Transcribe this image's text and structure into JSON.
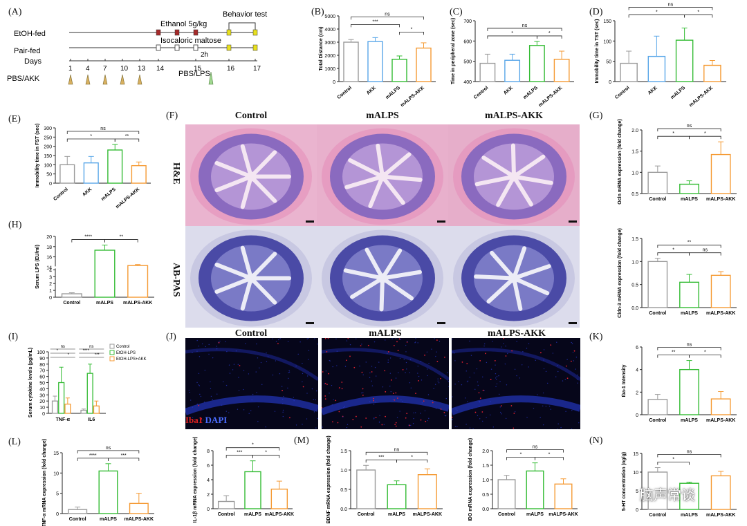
{
  "panel_labels": {
    "A": "(A)",
    "B": "(B)",
    "C": "(C)",
    "D": "(D)",
    "E": "(E)",
    "F": "(F)",
    "G": "(G)",
    "H": "(H)",
    "I": "(I)",
    "J": "(J)",
    "K": "(K)",
    "L": "(L)",
    "M": "(M)",
    "N": "(N)"
  },
  "timeline": {
    "row1_label": "EtOH-fed",
    "row2_label": "Pair-fed",
    "days_label": "Days",
    "ethanol_label": "Ethanol 5g/kg",
    "maltose_label": "Isocaloric maltose",
    "behavior_label": "Behavior test",
    "hours_label": "2h",
    "days": [
      "1",
      "4",
      "7",
      "10",
      "13",
      "14",
      "15",
      "16",
      "17"
    ],
    "pbs_akk_label": "PBS/AKK",
    "pbs_lps_label": "PBS/LPS"
  },
  "histology": {
    "col_titles": [
      "Control",
      "mALPS",
      "mALPS-AKK"
    ],
    "row_labels": [
      "H&E",
      "AB-PAS"
    ]
  },
  "fluorescence": {
    "col_titles": [
      "Control",
      "mALPS",
      "mALPS-AKK"
    ],
    "stain_iba": "Iba1",
    "stain_dapi": "DAPI"
  },
  "watermark": "脑声常谈",
  "chart_data": [
    {
      "id": "B",
      "type": "bar",
      "categories": [
        "Control",
        "AKK",
        "mALPS",
        "mALPS-AKK"
      ],
      "values": [
        3000,
        3050,
        1700,
        2550
      ],
      "errors": [
        200,
        300,
        250,
        400
      ],
      "colors": [
        "#9a9a9a",
        "#58a6e8",
        "#33bb33",
        "#f59a33"
      ],
      "ylabel": "Total Distance (cm)",
      "ylim": [
        0,
        5000
      ],
      "yticks": [
        "0",
        "1000",
        "2000",
        "3000",
        "4000",
        "5000"
      ],
      "sig": [
        {
          "a": 0,
          "b": 2,
          "text": "***",
          "level": 1
        },
        {
          "a": 2,
          "b": 3,
          "text": "*",
          "level": 0
        },
        {
          "a": 0,
          "b": 3,
          "text": "ns",
          "level": 2
        }
      ]
    },
    {
      "id": "C",
      "type": "bar",
      "categories": [
        "Control",
        "AKK",
        "mALPS",
        "mALPS-AKK"
      ],
      "values": [
        490,
        505,
        578,
        510
      ],
      "errors": [
        45,
        30,
        20,
        40
      ],
      "colors": [
        "#9a9a9a",
        "#58a6e8",
        "#33bb33",
        "#f59a33"
      ],
      "ylabel": "Time in peripheral zone (sec)",
      "ylim": [
        400,
        700
      ],
      "yticks": [
        "400",
        "500",
        "600",
        "700"
      ],
      "sig": [
        {
          "a": 0,
          "b": 2,
          "text": "*",
          "level": 0
        },
        {
          "a": 2,
          "b": 3,
          "text": "*",
          "level": 0
        },
        {
          "a": 0,
          "b": 3,
          "text": "ns",
          "level": 1
        }
      ]
    },
    {
      "id": "D",
      "type": "bar",
      "categories": [
        "Control",
        "AKK",
        "mALPS",
        "mALPS-AKK"
      ],
      "values": [
        45,
        62,
        102,
        40
      ],
      "errors": [
        30,
        50,
        30,
        12
      ],
      "colors": [
        "#9a9a9a",
        "#58a6e8",
        "#33bb33",
        "#f59a33"
      ],
      "ylabel": "Immobility time in TST (sec)",
      "ylim": [
        0,
        150
      ],
      "yticks": [
        "0",
        "50",
        "100",
        "150"
      ],
      "sig": [
        {
          "a": 0,
          "b": 2,
          "text": "*",
          "level": 1
        },
        {
          "a": 2,
          "b": 3,
          "text": "*",
          "level": 1
        },
        {
          "a": 0,
          "b": 3,
          "text": "ns",
          "level": 2
        }
      ]
    },
    {
      "id": "E",
      "type": "bar",
      "categories": [
        "Control",
        "AKK",
        "mALPS",
        "mALPS-AKK"
      ],
      "values": [
        100,
        110,
        180,
        95
      ],
      "errors": [
        45,
        35,
        30,
        20
      ],
      "colors": [
        "#9a9a9a",
        "#58a6e8",
        "#33bb33",
        "#f59a33"
      ],
      "ylabel": "Immobility time in FST (sec)",
      "ylim": [
        0,
        300
      ],
      "yticks": [
        "0",
        "50",
        "100",
        "150",
        "200",
        "250",
        "300"
      ],
      "sig": [
        {
          "a": 0,
          "b": 2,
          "text": "*",
          "level": 0
        },
        {
          "a": 2,
          "b": 3,
          "text": "**",
          "level": 0
        },
        {
          "a": 0,
          "b": 3,
          "text": "ns",
          "level": 1
        }
      ]
    },
    {
      "id": "G1",
      "type": "bar",
      "categories": [
        "Control",
        "mALPS",
        "mALPS-AKK"
      ],
      "values": [
        1.0,
        0.72,
        1.42
      ],
      "errors": [
        0.15,
        0.08,
        0.3
      ],
      "colors": [
        "#9a9a9a",
        "#33bb33",
        "#f59a33"
      ],
      "ylabel": "Ocln mRNA expression (fold change)",
      "ylim": [
        0.5,
        2.0
      ],
      "yticks": [
        "0.5",
        "1.0",
        "1.5",
        "2.0"
      ],
      "sig": [
        {
          "a": 0,
          "b": 1,
          "text": "*",
          "level": 0
        },
        {
          "a": 1,
          "b": 2,
          "text": "*",
          "level": 0
        },
        {
          "a": 0,
          "b": 2,
          "text": "ns",
          "level": 1
        }
      ]
    },
    {
      "id": "G2",
      "type": "bar",
      "categories": [
        "Control",
        "mALPS",
        "mALPS-AKK"
      ],
      "values": [
        1.0,
        0.55,
        0.7
      ],
      "errors": [
        0.07,
        0.17,
        0.08
      ],
      "colors": [
        "#9a9a9a",
        "#33bb33",
        "#f59a33"
      ],
      "ylabel": "Cldn-3 mRNA expression (fold change)",
      "ylim": [
        0.0,
        1.5
      ],
      "yticks": [
        "0.0",
        "0.5",
        "1.0",
        "1.5"
      ],
      "sig": [
        {
          "a": 0,
          "b": 1,
          "text": "*",
          "level": 0
        },
        {
          "a": 1,
          "b": 2,
          "text": "ns",
          "level": 0
        },
        {
          "a": 0,
          "b": 2,
          "text": "**",
          "level": 1
        }
      ]
    },
    {
      "id": "H",
      "type": "bar",
      "categories": [
        "Control",
        "mALPS",
        "mALPS-AKK"
      ],
      "values": [
        0.5,
        17.3,
        14.3
      ],
      "errors": [
        0.15,
        1.0,
        0.2
      ],
      "colors": [
        "#9a9a9a",
        "#33bb33",
        "#f59a33"
      ],
      "ylabel": "Serum LPS (EU/ml)",
      "ylim": [
        0,
        20
      ],
      "yticks": [
        "0",
        "1",
        "2",
        "3",
        "4",
        "14",
        "16",
        "18",
        "20"
      ],
      "axis_break": true,
      "sig": [
        {
          "a": 0,
          "b": 1,
          "text": "****",
          "level": 0
        },
        {
          "a": 1,
          "b": 2,
          "text": "**",
          "level": 0
        }
      ]
    },
    {
      "id": "I",
      "type": "grouped_bar",
      "categories": [
        "TNF-α",
        "IL6"
      ],
      "series": [
        {
          "name": "Control",
          "values": [
            20,
            5
          ],
          "errors": [
            8,
            2
          ],
          "color": "#9a9a9a"
        },
        {
          "name": "EtOH-LPS",
          "values": [
            50,
            65
          ],
          "errors": [
            25,
            15
          ],
          "color": "#33bb33"
        },
        {
          "name": "EtOH-LPS+AKK",
          "values": [
            15,
            12
          ],
          "errors": [
            10,
            8
          ],
          "color": "#f59a33"
        }
      ],
      "ylabel": "Serum cytokine levels (pg/mL)",
      "ylim": [
        0,
        100
      ],
      "yticks": [
        "0",
        "10",
        "20",
        "30",
        "40",
        "50",
        "60",
        "70",
        "80",
        "90",
        "100"
      ],
      "sig_text": [
        "ns",
        "*",
        "*",
        "ns",
        "****",
        "***"
      ]
    },
    {
      "id": "K",
      "type": "bar",
      "categories": [
        "Control",
        "mALPS",
        "mALPS-AKK"
      ],
      "values": [
        1.35,
        4.0,
        1.4
      ],
      "errors": [
        0.45,
        0.8,
        0.65
      ],
      "colors": [
        "#9a9a9a",
        "#33bb33",
        "#f59a33"
      ],
      "ylabel": "Iba-1 Intensity",
      "ylim": [
        0,
        6
      ],
      "yticks": [
        "0",
        "2",
        "4",
        "6"
      ],
      "sig": [
        {
          "a": 0,
          "b": 1,
          "text": "**",
          "level": 0
        },
        {
          "a": 1,
          "b": 2,
          "text": "*",
          "level": 0
        },
        {
          "a": 0,
          "b": 2,
          "text": "ns",
          "level": 1
        }
      ]
    },
    {
      "id": "L1",
      "type": "bar",
      "categories": [
        "Control",
        "mALPS",
        "mALPS-AKK"
      ],
      "values": [
        1.0,
        10.5,
        2.5
      ],
      "errors": [
        0.6,
        1.8,
        2.5
      ],
      "colors": [
        "#9a9a9a",
        "#33bb33",
        "#f59a33"
      ],
      "ylabel": "TNF-α mRNA expression (fold change)",
      "ylim": [
        0,
        15
      ],
      "yticks": [
        "0",
        "5",
        "10",
        "15"
      ],
      "sig": [
        {
          "a": 0,
          "b": 1,
          "text": "****",
          "level": 0
        },
        {
          "a": 1,
          "b": 2,
          "text": "***",
          "level": 0
        },
        {
          "a": 0,
          "b": 2,
          "text": "ns",
          "level": 1
        }
      ]
    },
    {
      "id": "L2",
      "type": "bar",
      "categories": [
        "Control",
        "mALPS",
        "mALPS-AKK"
      ],
      "values": [
        1.0,
        5.1,
        2.7
      ],
      "errors": [
        0.8,
        1.5,
        1.1
      ],
      "colors": [
        "#9a9a9a",
        "#33bb33",
        "#f59a33"
      ],
      "ylabel": "IL-1β mRNA expression (fold change)",
      "ylim": [
        0,
        8
      ],
      "yticks": [
        "0",
        "2",
        "4",
        "6",
        "8"
      ],
      "sig": [
        {
          "a": 0,
          "b": 1,
          "text": "***",
          "level": 0
        },
        {
          "a": 1,
          "b": 2,
          "text": "*",
          "level": 0
        },
        {
          "a": 0,
          "b": 2,
          "text": "*",
          "level": 1
        }
      ]
    },
    {
      "id": "M1",
      "type": "bar",
      "categories": [
        "Control",
        "mALPS",
        "mALPS-AKK"
      ],
      "values": [
        1.0,
        0.62,
        0.88
      ],
      "errors": [
        0.12,
        0.1,
        0.15
      ],
      "colors": [
        "#9a9a9a",
        "#33bb33",
        "#f59a33"
      ],
      "ylabel": "BDNF mRNA expression (fold change)",
      "ylim": [
        0.0,
        1.5
      ],
      "yticks": [
        "0.0",
        "0.5",
        "1.0",
        "1.5"
      ],
      "sig": [
        {
          "a": 0,
          "b": 1,
          "text": "***",
          "level": 0
        },
        {
          "a": 1,
          "b": 2,
          "text": "*",
          "level": 0
        },
        {
          "a": 0,
          "b": 2,
          "text": "ns",
          "level": 1
        }
      ]
    },
    {
      "id": "M2",
      "type": "bar",
      "categories": [
        "Control",
        "mALPS",
        "mALPS-AKK"
      ],
      "values": [
        1.0,
        1.3,
        0.85
      ],
      "errors": [
        0.15,
        0.28,
        0.18
      ],
      "colors": [
        "#9a9a9a",
        "#33bb33",
        "#f59a33"
      ],
      "ylabel": "IDO mRNA expression (fold change)",
      "ylim": [
        0.0,
        2.0
      ],
      "yticks": [
        "0.0",
        "0.5",
        "1.0",
        "1.5",
        "2.0"
      ],
      "sig": [
        {
          "a": 0,
          "b": 1,
          "text": "*",
          "level": 0
        },
        {
          "a": 1,
          "b": 2,
          "text": "*",
          "level": 0
        },
        {
          "a": 0,
          "b": 2,
          "text": "ns",
          "level": 1
        }
      ]
    },
    {
      "id": "N",
      "type": "bar",
      "categories": [
        "Control",
        "mALPS",
        "mALPS-AKK"
      ],
      "values": [
        10,
        7,
        9
      ],
      "errors": [
        1.2,
        0.3,
        1.2
      ],
      "colors": [
        "#9a9a9a",
        "#33bb33",
        "#f59a33"
      ],
      "ylabel": "5-HT concentration (ng/g)",
      "ylim": [
        0,
        15
      ],
      "yticks": [
        "0",
        "5",
        "10",
        "15"
      ],
      "sig": [
        {
          "a": 0,
          "b": 1,
          "text": "*",
          "level": 0
        },
        {
          "a": 0,
          "b": 2,
          "text": "ns",
          "level": 1
        }
      ]
    }
  ]
}
